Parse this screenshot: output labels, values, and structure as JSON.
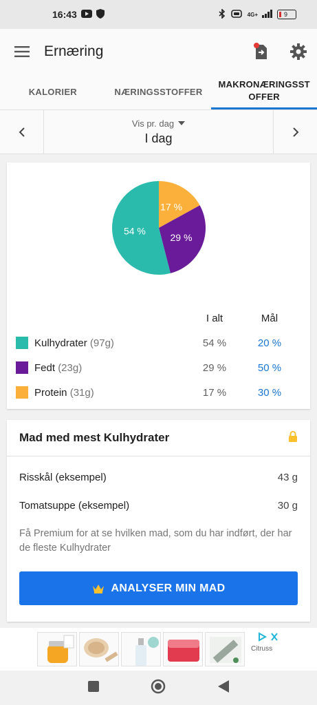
{
  "status_bar": {
    "time": "16:43",
    "network": "4G+",
    "battery": "9"
  },
  "app_bar": {
    "title": "Ernæring"
  },
  "tabs": [
    {
      "label": "KALORIER",
      "active": false
    },
    {
      "label": "NÆRINGSSTOFFER",
      "active": false
    },
    {
      "label": "MAKRONÆRINGSSTOFFER",
      "active": true
    }
  ],
  "date_nav": {
    "period_select": "Vis pr. dag",
    "date_label": "I dag"
  },
  "macros": {
    "chart_data": {
      "type": "pie",
      "slices": [
        {
          "label": "Protein",
          "value": 17,
          "color": "#fbb03b"
        },
        {
          "label": "Fedt",
          "value": 29,
          "color": "#6a1b9a"
        },
        {
          "label": "Kulhydrater",
          "value": 54,
          "color": "#2bbbad"
        }
      ],
      "slice_labels": [
        "17 %",
        "29 %",
        "54 %"
      ]
    },
    "col_total": "I alt",
    "col_goal": "Mål",
    "rows": [
      {
        "name": "Kulhydrater",
        "grams": "(97g)",
        "pct": "54 %",
        "goal": "20 %",
        "color": "#2bbbad"
      },
      {
        "name": "Fedt",
        "grams": "(23g)",
        "pct": "29 %",
        "goal": "50 %",
        "color": "#6a1b9a"
      },
      {
        "name": "Protein",
        "grams": "(31g)",
        "pct": "17 %",
        "goal": "30 %",
        "color": "#fbb03b"
      }
    ]
  },
  "top_foods": {
    "title": "Mad med mest Kulhydrater",
    "items": [
      {
        "name": "Risskål (eksempel)",
        "amount": "43 g"
      },
      {
        "name": "Tomatsuppe (eksempel)",
        "amount": "30 g"
      }
    ],
    "premium_text": "Få Premium for at se hvilken mad, som du har indført, der har de fleste Kulhydrater",
    "cta_label": "ANALYSER MIN MAD"
  },
  "ad": {
    "brand": "Citruss"
  },
  "colors": {
    "accent": "#1976d2",
    "cta": "#1a73e8",
    "lock": "#fbc02d"
  }
}
